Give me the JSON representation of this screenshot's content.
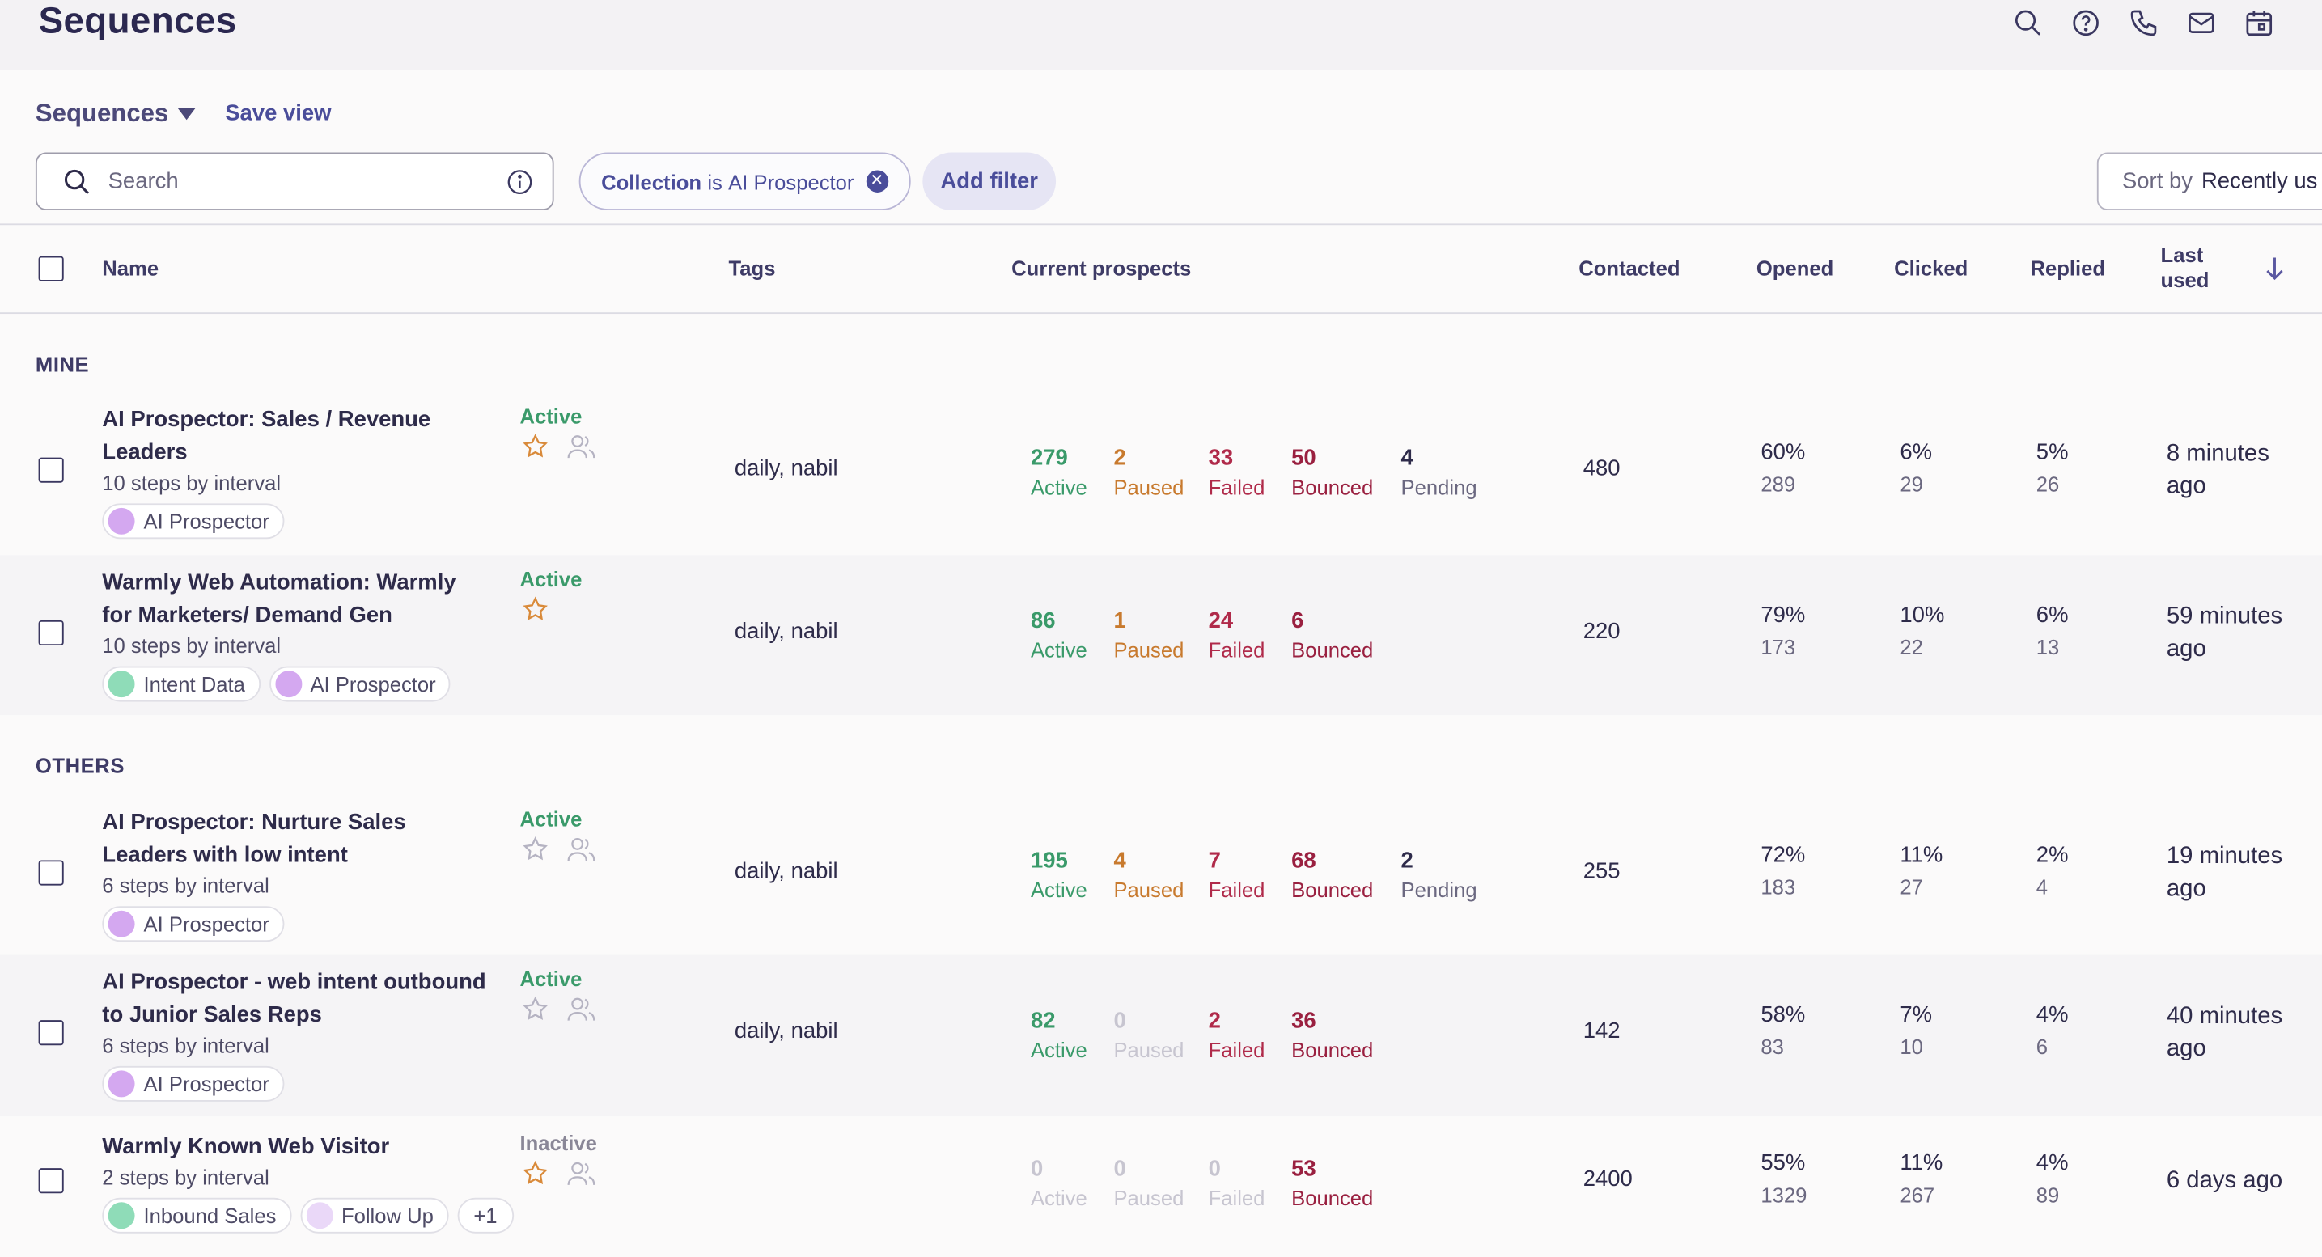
{
  "app": {
    "title": "Sequences"
  },
  "header_icons": [
    "search-icon",
    "help-icon",
    "phone-icon",
    "mail-icon",
    "calendar-icon"
  ],
  "view": {
    "label": "Sequences",
    "save_view": "Save view"
  },
  "search": {
    "placeholder": "Search",
    "value": ""
  },
  "filter": {
    "key": "Collection",
    "op": "is",
    "value": "AI Prospector"
  },
  "add_filter": "Add filter",
  "sort": {
    "label": "Sort by",
    "value": "Recently us"
  },
  "columns": {
    "name": "Name",
    "tags": "Tags",
    "current_prospects": "Current prospects",
    "contacted": "Contacted",
    "opened": "Opened",
    "clicked": "Clicked",
    "replied": "Replied",
    "last_used_1": "Last",
    "last_used_2": "used"
  },
  "groups": {
    "mine": "MINE",
    "others": "OTHERS"
  },
  "rows": [
    {
      "name": "AI Prospector: Sales / Revenue Leaders",
      "steps": "10 steps by interval",
      "tags": [
        {
          "label": "AI Prospector",
          "color": "#d4a8f0"
        }
      ],
      "status": "Active",
      "starred": true,
      "tag_text": "daily, nabil",
      "active": "279",
      "active_label": "Active",
      "paused": "2",
      "paused_label": "Paused",
      "failed": "33",
      "failed_label": "Failed",
      "bounced": "50",
      "bounced_label": "Bounced",
      "pending": "4",
      "pending_label": "Pending",
      "contacted": "480",
      "opened_pct": "60%",
      "opened_count": "289",
      "clicked_pct": "6%",
      "clicked_count": "29",
      "replied_pct": "5%",
      "replied_count": "26",
      "last_used": "8 minutes ago"
    },
    {
      "name": "Warmly Web Automation: Warmly for Marketers/ Demand Gen",
      "steps": "10 steps by interval",
      "tags": [
        {
          "label": "Intent Data",
          "color": "#8fdcb8"
        },
        {
          "label": "AI Prospector",
          "color": "#d4a8f0"
        }
      ],
      "status": "Active",
      "starred": true,
      "tag_text": "daily, nabil",
      "active": "86",
      "active_label": "Active",
      "paused": "1",
      "paused_label": "Paused",
      "failed": "24",
      "failed_label": "Failed",
      "bounced": "6",
      "bounced_label": "Bounced",
      "contacted": "220",
      "opened_pct": "79%",
      "opened_count": "173",
      "clicked_pct": "10%",
      "clicked_count": "22",
      "replied_pct": "6%",
      "replied_count": "13",
      "last_used": "59 minutes ago"
    },
    {
      "name": "AI Prospector: Nurture Sales Leaders with low intent",
      "steps": "6 steps by interval",
      "tags": [
        {
          "label": "AI Prospector",
          "color": "#d4a8f0"
        }
      ],
      "status": "Active",
      "starred": false,
      "tag_text": "daily, nabil",
      "active": "195",
      "active_label": "Active",
      "paused": "4",
      "paused_label": "Paused",
      "failed": "7",
      "failed_label": "Failed",
      "bounced": "68",
      "bounced_label": "Bounced",
      "pending": "2",
      "pending_label": "Pending",
      "contacted": "255",
      "opened_pct": "72%",
      "opened_count": "183",
      "clicked_pct": "11%",
      "clicked_count": "27",
      "replied_pct": "2%",
      "replied_count": "4",
      "last_used": "19 minutes ago"
    },
    {
      "name": "AI Prospector - web intent outbound to Junior Sales Reps",
      "steps": "6 steps by interval",
      "tags": [
        {
          "label": "AI Prospector",
          "color": "#d4a8f0"
        }
      ],
      "status": "Active",
      "starred": false,
      "tag_text": "daily, nabil",
      "active": "82",
      "active_label": "Active",
      "paused": "0",
      "paused_label": "Paused",
      "failed": "2",
      "failed_label": "Failed",
      "bounced": "36",
      "bounced_label": "Bounced",
      "contacted": "142",
      "opened_pct": "58%",
      "opened_count": "83",
      "clicked_pct": "7%",
      "clicked_count": "10",
      "replied_pct": "4%",
      "replied_count": "6",
      "last_used": "40 minutes ago"
    },
    {
      "name": "Warmly Known Web Visitor",
      "steps": "2 steps by interval",
      "tags": [
        {
          "label": "Inbound Sales",
          "color": "#8fdcb8"
        },
        {
          "label": "Follow Up",
          "color": "#ead8f8"
        }
      ],
      "more_tags": "+1",
      "status": "Inactive",
      "starred": true,
      "tag_text": "",
      "active": "0",
      "active_label": "Active",
      "paused": "0",
      "paused_label": "Paused",
      "failed": "0",
      "failed_label": "Failed",
      "bounced": "53",
      "bounced_label": "Bounced",
      "contacted": "2400",
      "opened_pct": "55%",
      "opened_count": "1329",
      "clicked_pct": "11%",
      "clicked_count": "267",
      "replied_pct": "4%",
      "replied_count": "89",
      "last_used": "6 days ago"
    }
  ]
}
